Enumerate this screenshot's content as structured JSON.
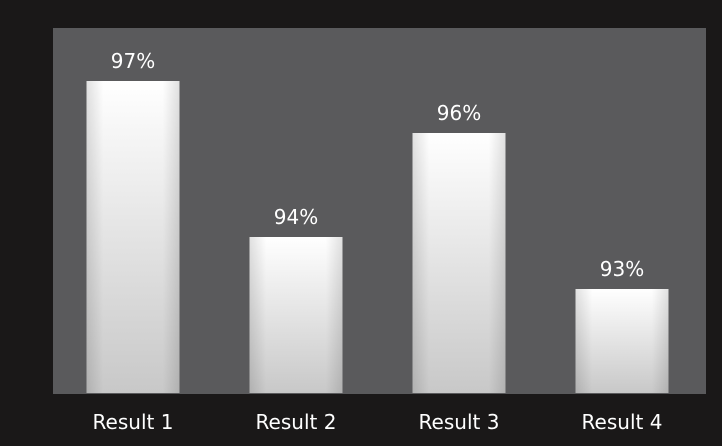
{
  "chart_data": {
    "type": "bar",
    "categories": [
      "Result 1",
      "Result 2",
      "Result 3",
      "Result 4"
    ],
    "values": [
      97,
      94,
      96,
      93
    ],
    "value_labels": [
      "97%",
      "94%",
      "96%",
      "93%"
    ],
    "title": "",
    "xlabel": "",
    "ylabel": "",
    "ylim": [
      90,
      98
    ],
    "grid": false,
    "legend": "none",
    "colors": {
      "outer_background": "#1a1818",
      "plot_background": "#5a5a5c",
      "bar_top": "#ffffff",
      "bar_bottom": "#c8c8c8",
      "text": "#ffffff"
    }
  }
}
